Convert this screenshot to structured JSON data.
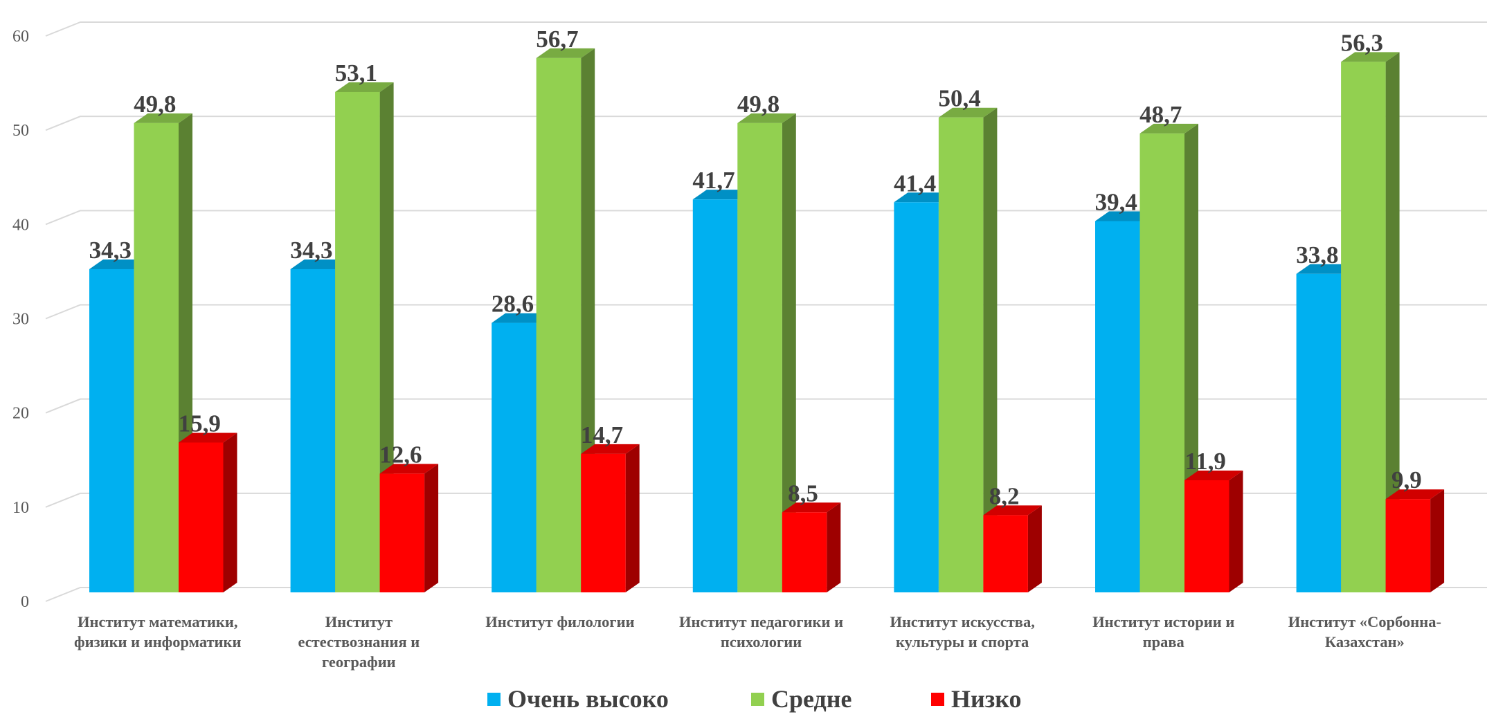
{
  "chart_data": {
    "type": "bar",
    "title": "",
    "xlabel": "",
    "ylabel": "",
    "ylim": [
      0,
      60
    ],
    "yticks": [
      0,
      10,
      20,
      30,
      40,
      50,
      60
    ],
    "grid": true,
    "legend_position": "bottom",
    "categories": [
      "Институт математики, физики и информатики",
      "Институт естествознания и географии",
      "Институт   филологии",
      "Институт педагогики и психологии",
      "Институт искусства, культуры и спорта",
      "Институт истории и права",
      "Институт «Сорбонна-Казахстан»"
    ],
    "series": [
      {
        "name": "Очень высоко",
        "color": "#00B0F0",
        "values": [
          34.3,
          34.3,
          28.6,
          41.7,
          41.4,
          39.4,
          33.8
        ],
        "labels": [
          "34,3",
          "34,3",
          "28,6",
          "41,7",
          "41,4",
          "39,4",
          "33,8"
        ]
      },
      {
        "name": "Средне",
        "color": "#92D050",
        "values": [
          49.8,
          53.1,
          56.7,
          49.8,
          50.4,
          48.7,
          56.3
        ],
        "labels": [
          "49,8",
          "53,1",
          "56,7",
          "49,8",
          "50,4",
          "48,7",
          "56,3"
        ]
      },
      {
        "name": "Низко",
        "color": "#FF0000",
        "values": [
          15.9,
          12.6,
          14.7,
          8.5,
          8.2,
          11.9,
          9.9
        ],
        "labels": [
          "15,9",
          "12,6",
          "14,7",
          "8,5",
          "8,2",
          "11,9",
          "9,9"
        ]
      }
    ]
  },
  "legend": {
    "items": [
      {
        "label": "Очень высоко",
        "color": "#00B0F0"
      },
      {
        "label": "Средне",
        "color": "#92D050"
      },
      {
        "label": "Низко",
        "color": "#FF0000"
      }
    ]
  }
}
